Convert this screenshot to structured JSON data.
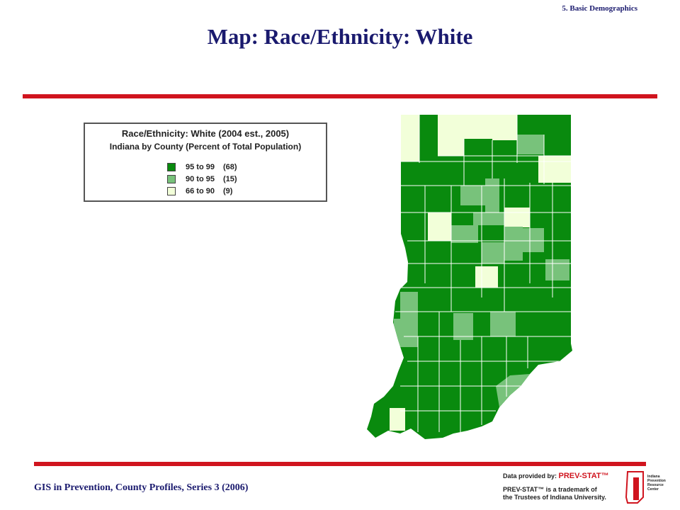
{
  "header": {
    "section": "5. Basic Demographics",
    "title": "Map: Race/Ethnicity: White"
  },
  "legend": {
    "title": "Race/Ethnicity: White (2004 est., 2005)",
    "subtitle": "Indiana by County (Percent of Total Population)",
    "items": [
      {
        "range": "95 to 99",
        "count": "(68)"
      },
      {
        "range": "90 to 95",
        "count": "(15)"
      },
      {
        "range": "66 to 90",
        "count": "(9)"
      }
    ]
  },
  "footer": {
    "series": "GIS in Prevention, County Profiles, Series 3 (2006)",
    "provided_label": "Data provided by:",
    "provider": "PREV-STAT™",
    "trademark": [
      "PREV-STAT™ is a trademark of",
      "the Trustees of Indiana University."
    ],
    "center": "Indiana Prevention Resource Center"
  }
}
